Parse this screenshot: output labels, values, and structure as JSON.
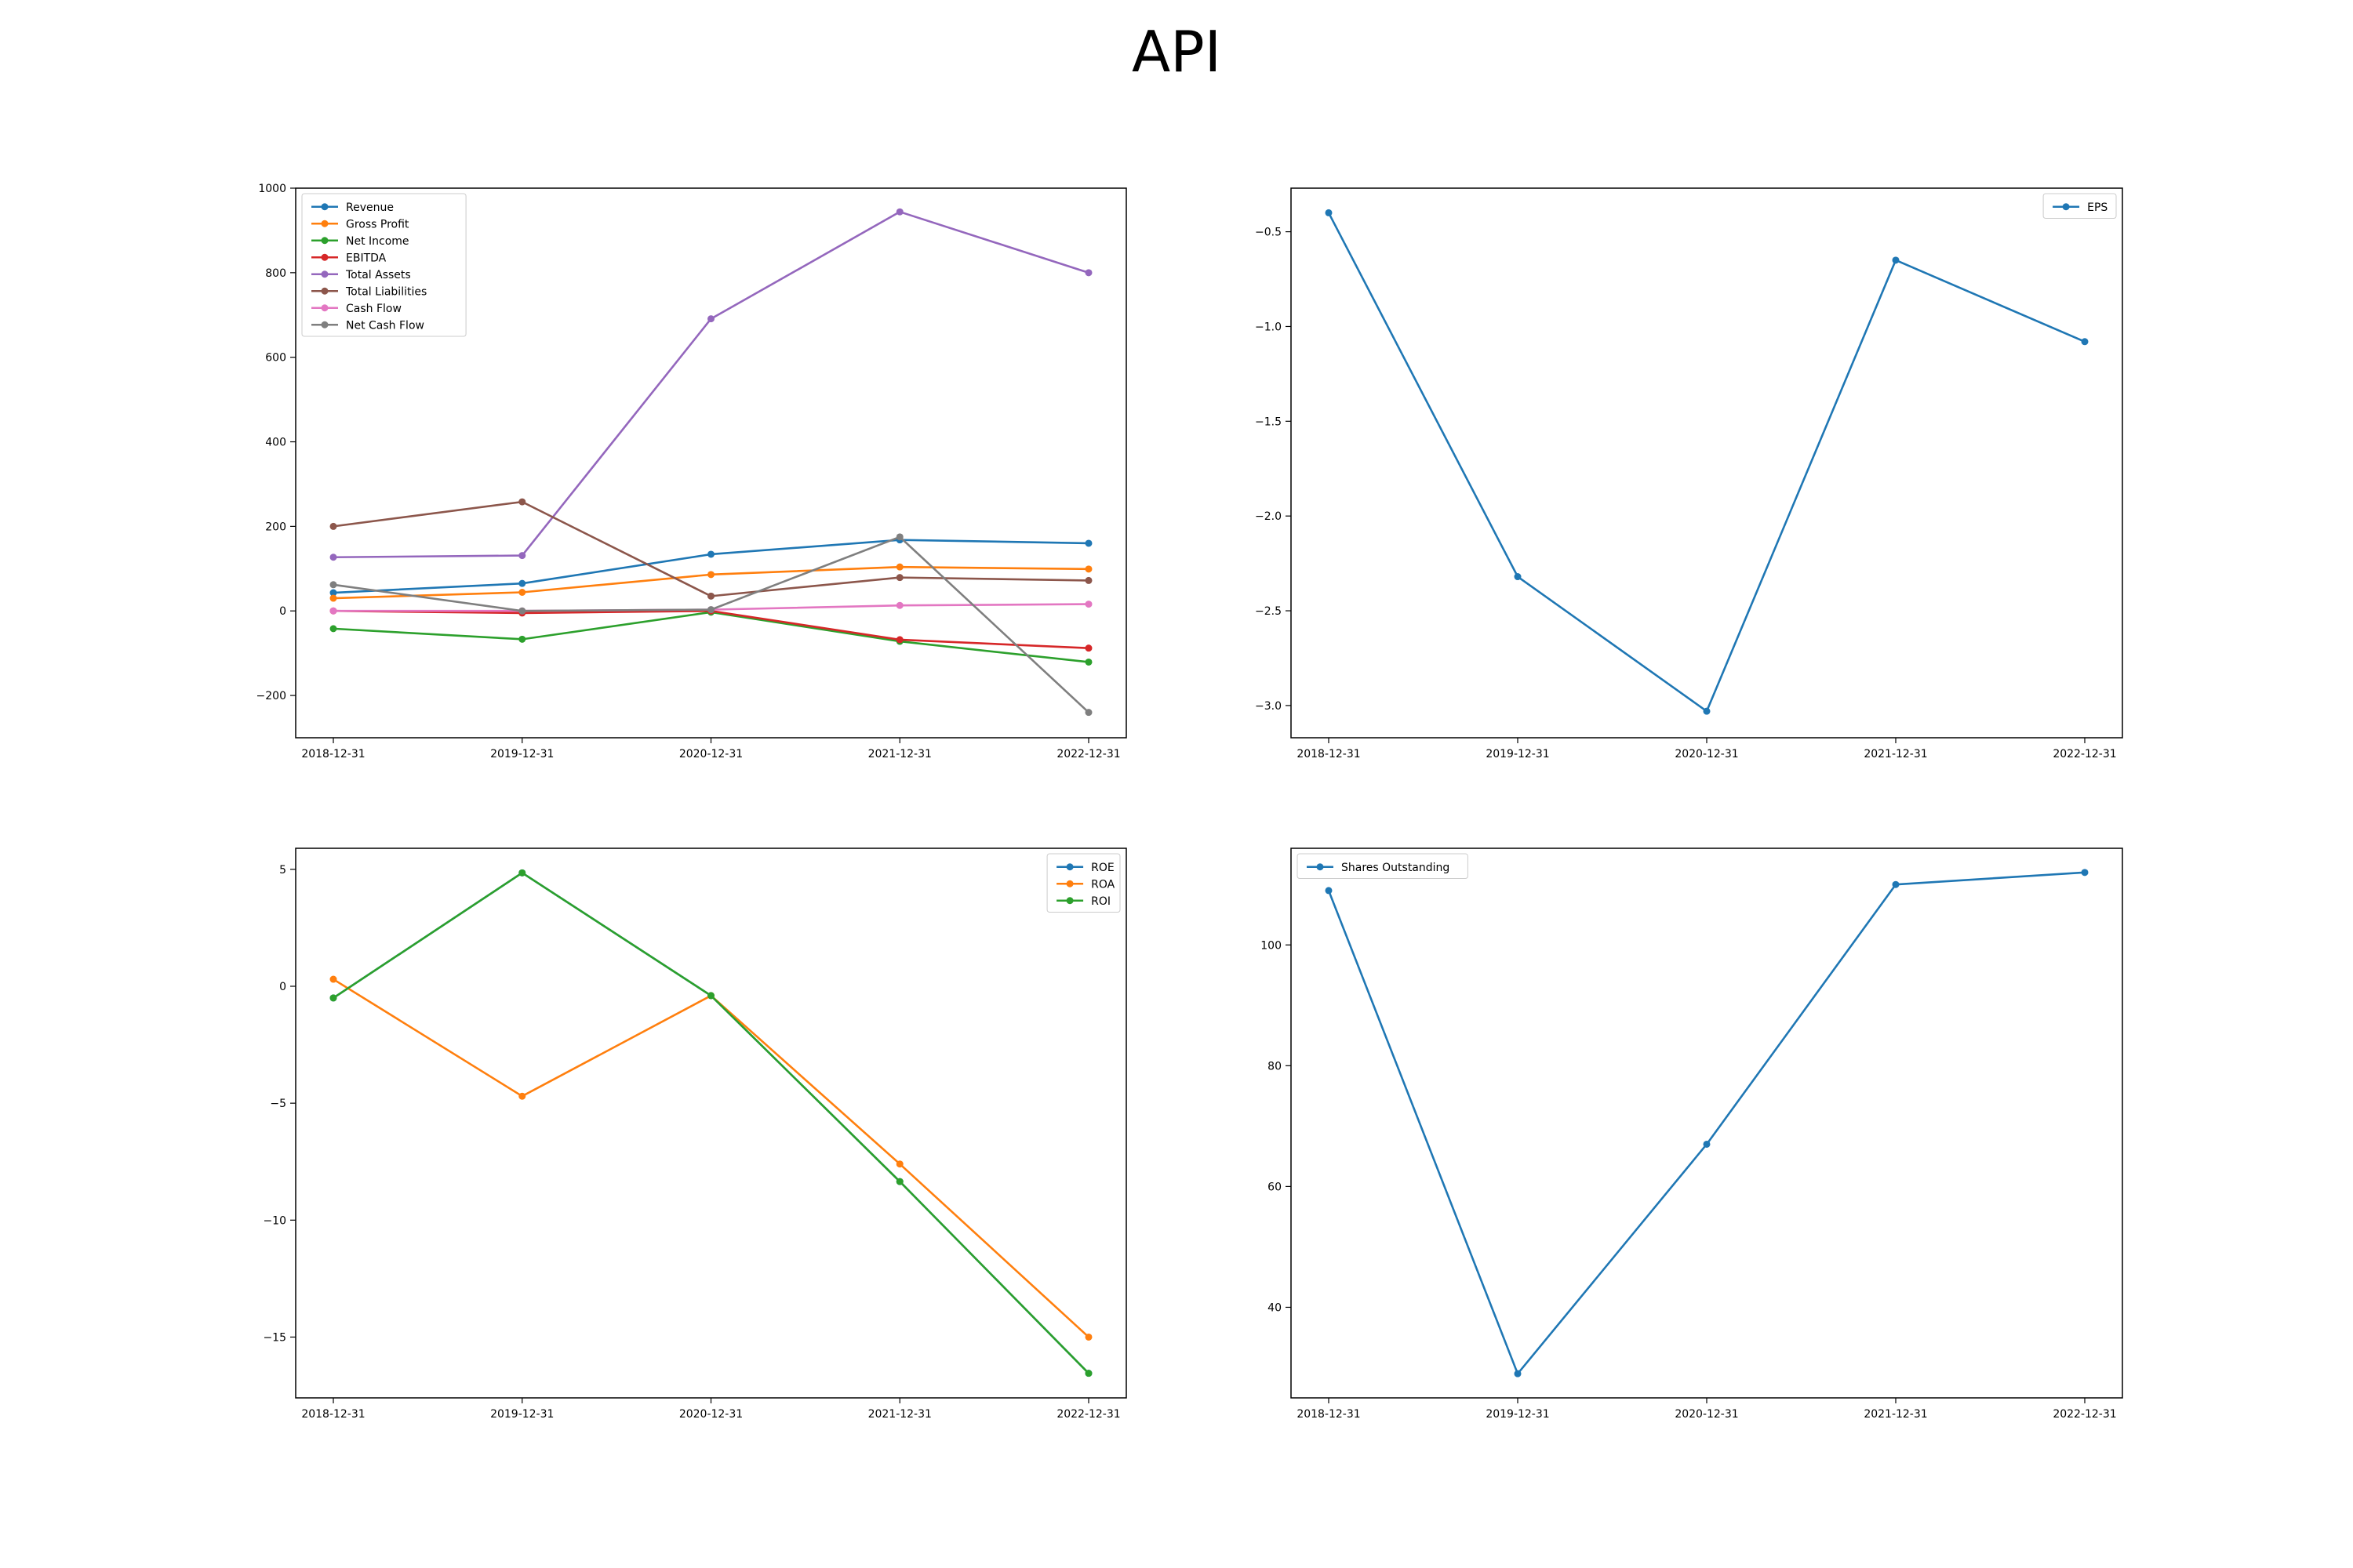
{
  "figure": {
    "title": "API"
  },
  "colors": {
    "Revenue": "#1f77b4",
    "Gross Profit": "#ff7f0e",
    "Net Income": "#2ca02c",
    "EBITDA": "#d62728",
    "Total Assets": "#9467bd",
    "Total Liabilities": "#8c564b",
    "Cash Flow": "#e377c2",
    "Net Cash Flow": "#7f7f7f",
    "EPS": "#1f77b4",
    "ROE": "#1f77b4",
    "ROA": "#ff7f0e",
    "ROI": "#2ca02c",
    "Shares Outstanding": "#1f77b4"
  },
  "chart_data": [
    {
      "type": "line",
      "x": [
        "2018-12-31",
        "2019-12-31",
        "2020-12-31",
        "2021-12-31",
        "2022-12-31"
      ],
      "ylim": [
        -300,
        1000
      ],
      "yticks": [
        -200,
        0,
        200,
        400,
        600,
        800,
        1000
      ],
      "ytick_labels": [
        "−200",
        "0",
        "200",
        "400",
        "600",
        "800",
        "1000"
      ],
      "legend_position": "top-left",
      "series": [
        {
          "name": "Revenue",
          "values": [
            43,
            65,
            134,
            168,
            160
          ]
        },
        {
          "name": "Gross Profit",
          "values": [
            30,
            44,
            86,
            104,
            99
          ]
        },
        {
          "name": "Net Income",
          "values": [
            -42,
            -67,
            -3,
            -72,
            -121
          ]
        },
        {
          "name": "EBITDA",
          "values": [
            0,
            -5,
            0,
            -68,
            -88
          ]
        },
        {
          "name": "Total Assets",
          "values": [
            127,
            131,
            691,
            944,
            800
          ]
        },
        {
          "name": "Total Liabilities",
          "values": [
            200,
            258,
            35,
            79,
            72
          ]
        },
        {
          "name": "Cash Flow",
          "values": [
            0,
            0,
            3,
            13,
            16
          ]
        },
        {
          "name": "Net Cash Flow",
          "values": [
            62,
            0,
            3,
            175,
            -240
          ]
        }
      ]
    },
    {
      "type": "line",
      "x": [
        "2018-12-31",
        "2019-12-31",
        "2020-12-31",
        "2021-12-31",
        "2022-12-31"
      ],
      "ylim": [
        -3.17,
        -0.27
      ],
      "yticks": [
        -3.0,
        -2.5,
        -2.0,
        -1.5,
        -1.0,
        -0.5
      ],
      "ytick_labels": [
        "−3.0",
        "−2.5",
        "−2.0",
        "−1.5",
        "−1.0",
        "−0.5"
      ],
      "legend_position": "top-right",
      "series": [
        {
          "name": "EPS",
          "values": [
            -0.4,
            -2.32,
            -3.03,
            -0.65,
            -1.08
          ]
        }
      ]
    },
    {
      "type": "line",
      "x": [
        "2018-12-31",
        "2019-12-31",
        "2020-12-31",
        "2021-12-31",
        "2022-12-31"
      ],
      "ylim": [
        -17.6,
        5.9
      ],
      "yticks": [
        -15,
        -10,
        -5,
        0,
        5
      ],
      "ytick_labels": [
        "−15",
        "−10",
        "−5",
        "0",
        "5"
      ],
      "legend_position": "top-right",
      "series": [
        {
          "name": "ROE",
          "values": [
            -0.5,
            4.85,
            -0.4,
            -8.35,
            -16.55
          ]
        },
        {
          "name": "ROA",
          "values": [
            0.3,
            -4.7,
            -0.4,
            -7.6,
            -15.0
          ]
        },
        {
          "name": "ROI",
          "values": [
            -0.5,
            4.85,
            -0.4,
            -8.35,
            -16.55
          ]
        }
      ]
    },
    {
      "type": "line",
      "x": [
        "2018-12-31",
        "2019-12-31",
        "2020-12-31",
        "2021-12-31",
        "2022-12-31"
      ],
      "ylim": [
        25,
        116
      ],
      "yticks": [
        40,
        60,
        80,
        100
      ],
      "ytick_labels": [
        "40",
        "60",
        "80",
        "100"
      ],
      "legend_position": "top-left",
      "series": [
        {
          "name": "Shares Outstanding",
          "values": [
            109,
            29,
            67,
            110,
            112
          ]
        }
      ]
    }
  ]
}
